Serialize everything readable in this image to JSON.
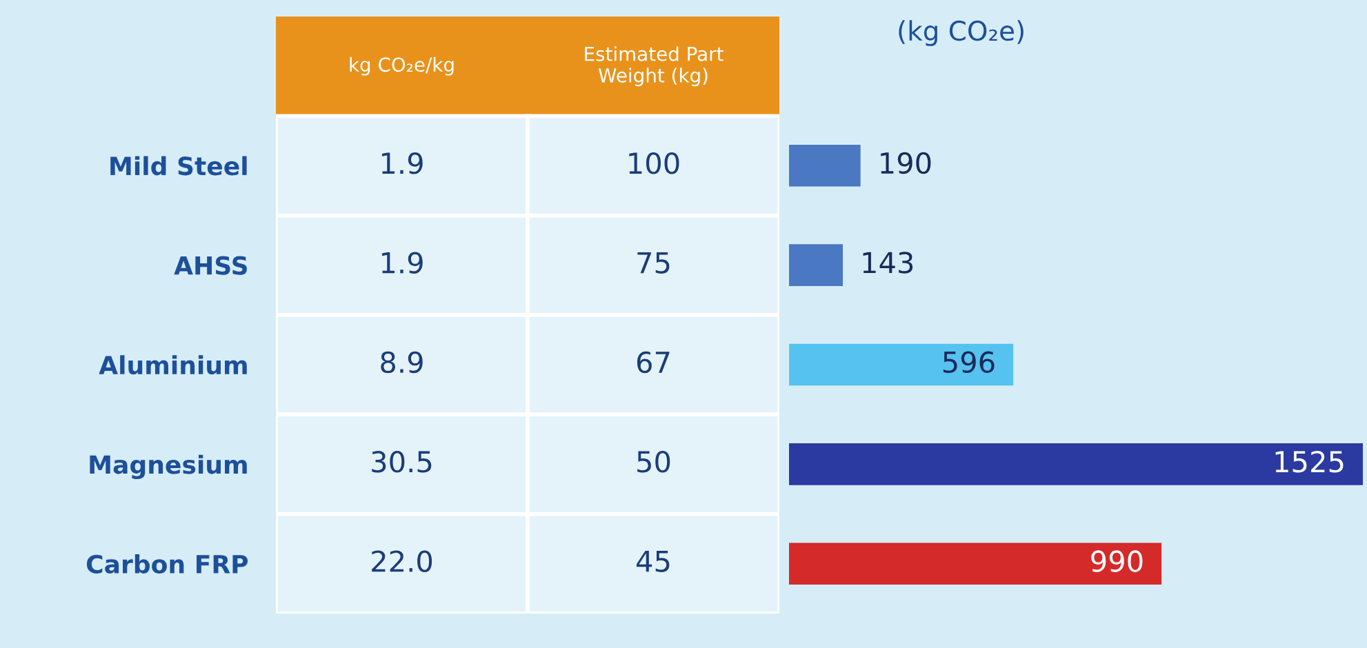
{
  "chart_data": [
    {
      "type": "other",
      "categories": [
        "kg CO₂e/kg",
        "Estimated Part\nWeight (kg)"
      ],
      "cell_labels": [
        [
          "1.9",
          "100"
        ],
        [
          "1.9",
          "75"
        ],
        [
          "8.9",
          "67"
        ],
        [
          "30.5",
          "50"
        ],
        [
          "22.0",
          "45"
        ]
      ]
    },
    {
      "type": "bar",
      "orientation": "horizontal",
      "title": "(kg CO₂e)",
      "categories": [
        "Mild Steel",
        "AHSS",
        "Aluminium",
        "Magnesium",
        "Carbon FRP"
      ],
      "values": [
        190,
        143,
        596,
        1525,
        990
      ],
      "colors": [
        "#4a78c2",
        "#4a78c2",
        "#56c2ef",
        "#2a3aa0",
        "#d42a2a"
      ],
      "xlim": [
        0,
        1525
      ],
      "data_labels": true,
      "tick_labels": "y",
      "grid": false
    }
  ]
}
